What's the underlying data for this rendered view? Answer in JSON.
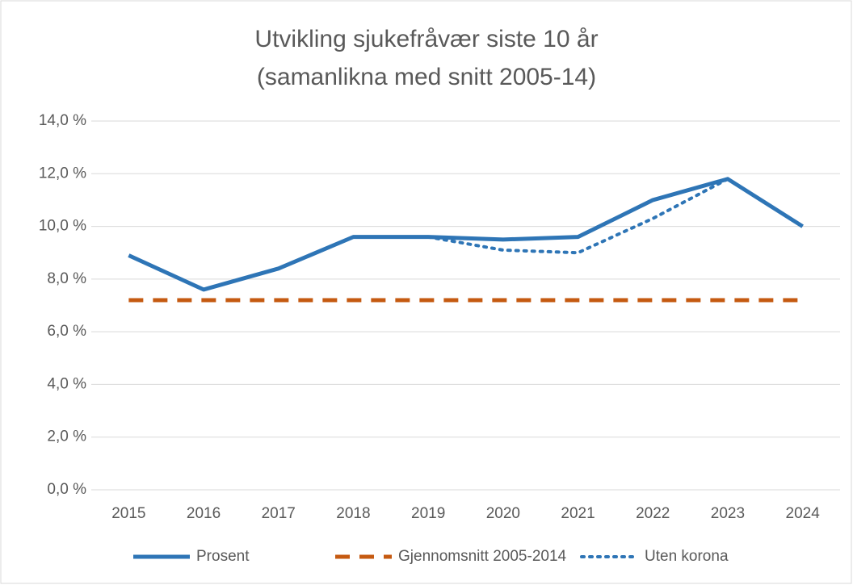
{
  "chart_data": {
    "type": "line",
    "title": [
      "Utvikling sjukefråvær siste 10 år",
      "(samanlikna med snitt 2005-14)"
    ],
    "categories": [
      "2015",
      "2016",
      "2017",
      "2018",
      "2019",
      "2020",
      "2021",
      "2022",
      "2023",
      "2024"
    ],
    "series": [
      {
        "name": "Prosent",
        "color": "#2e75b6",
        "dash": "solid",
        "values": [
          8.9,
          7.6,
          8.4,
          9.6,
          9.6,
          9.5,
          9.6,
          11.0,
          11.8,
          10.0
        ]
      },
      {
        "name": "Gjennomsnitt 2005-2014",
        "color": "#c55a11",
        "dash": "dashed",
        "values": [
          7.2,
          7.2,
          7.2,
          7.2,
          7.2,
          7.2,
          7.2,
          7.2,
          7.2,
          7.2
        ]
      },
      {
        "name": "Uten korona",
        "color": "#2e75b6",
        "dash": "dotted",
        "values": [
          null,
          null,
          null,
          null,
          9.6,
          9.1,
          9.0,
          10.3,
          11.8,
          null
        ]
      }
    ],
    "ylim": [
      0,
      14
    ],
    "yticks": [
      {
        "value": 0,
        "label": "0,0 %"
      },
      {
        "value": 2,
        "label": "2,0 %"
      },
      {
        "value": 4,
        "label": "4,0 %"
      },
      {
        "value": 6,
        "label": "6,0 %"
      },
      {
        "value": 8,
        "label": "8,0 %"
      },
      {
        "value": 10,
        "label": "10,0 %"
      },
      {
        "value": 12,
        "label": "12,0 %"
      },
      {
        "value": 14,
        "label": "14,0 %"
      }
    ],
    "grid": true,
    "legend": "bottom"
  }
}
